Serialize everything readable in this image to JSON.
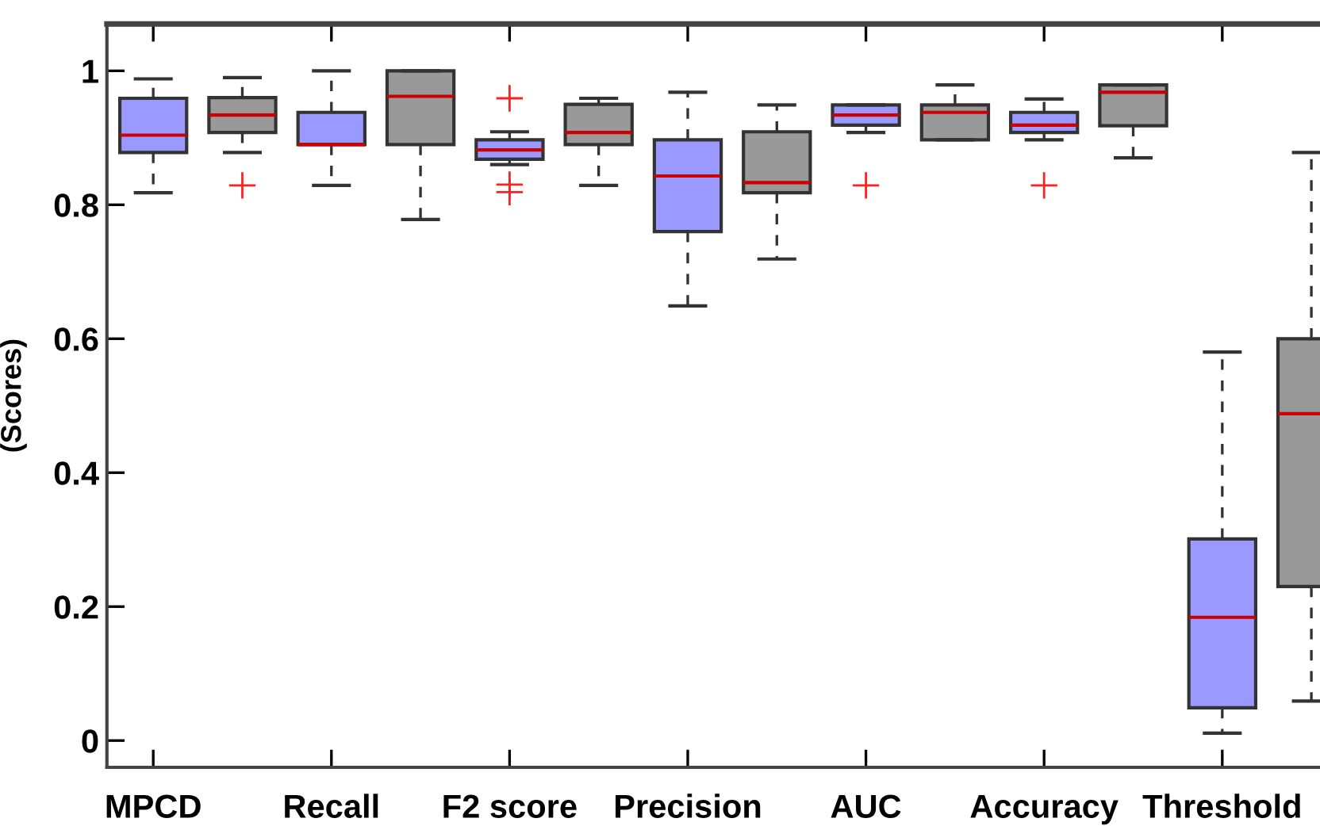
{
  "chart_data": {
    "type": "box",
    "ylabel": "(Scores)",
    "categories": [
      "MPCD",
      null,
      "Recall",
      null,
      "F2 score",
      null,
      "Precision",
      null,
      "AUC",
      null,
      "Accuracy",
      null,
      "Threshold",
      null
    ],
    "colors": [
      "#9999ff",
      "#999999",
      "#9999ff",
      "#999999",
      "#9999ff",
      "#999999",
      "#9999ff",
      "#999999",
      "#9999ff",
      "#999999",
      "#9999ff",
      "#999999",
      "#9999ff",
      "#999999"
    ],
    "boxes": [
      {
        "low": 0.818,
        "q1": 0.878,
        "median": 0.904,
        "q3": 0.959,
        "high": 0.988
      },
      {
        "low": 0.878,
        "q1": 0.908,
        "median": 0.934,
        "q3": 0.96,
        "high": 0.99,
        "outliers": [
          0.829
        ]
      },
      {
        "low": 0.829,
        "q1": 0.89,
        "median": 0.89,
        "q3": 0.938,
        "high": 1.0
      },
      {
        "low": 0.778,
        "q1": 0.89,
        "median": 0.962,
        "q3": 1.0,
        "high": 1.0
      },
      {
        "low": 0.86,
        "q1": 0.868,
        "median": 0.882,
        "q3": 0.897,
        "high": 0.909,
        "outliers": [
          0.959,
          0.83,
          0.819
        ]
      },
      {
        "low": 0.829,
        "q1": 0.89,
        "median": 0.908,
        "q3": 0.95,
        "high": 0.959
      },
      {
        "low": 0.649,
        "q1": 0.76,
        "median": 0.843,
        "q3": 0.897,
        "high": 0.968
      },
      {
        "low": 0.719,
        "q1": 0.818,
        "median": 0.833,
        "q3": 0.909,
        "high": 0.949
      },
      {
        "low": 0.908,
        "q1": 0.919,
        "median": 0.934,
        "q3": 0.949,
        "high": 0.949,
        "outliers": [
          0.829
        ]
      },
      {
        "low": 0.897,
        "q1": 0.897,
        "median": 0.938,
        "q3": 0.949,
        "high": 0.979
      },
      {
        "low": 0.897,
        "q1": 0.908,
        "median": 0.919,
        "q3": 0.938,
        "high": 0.958,
        "outliers": [
          0.829
        ]
      },
      {
        "low": 0.87,
        "q1": 0.918,
        "median": 0.968,
        "q3": 0.979,
        "high": 0.979
      },
      {
        "low": 0.011,
        "q1": 0.049,
        "median": 0.184,
        "q3": 0.301,
        "high": 0.58
      },
      {
        "low": 0.059,
        "q1": 0.23,
        "median": 0.488,
        "q3": 0.6,
        "high": 0.878
      }
    ],
    "ylim": [
      -0.04,
      1.07
    ],
    "yticks": [
      0,
      0.2,
      0.4,
      0.6,
      0.8,
      1
    ],
    "grid": false
  }
}
